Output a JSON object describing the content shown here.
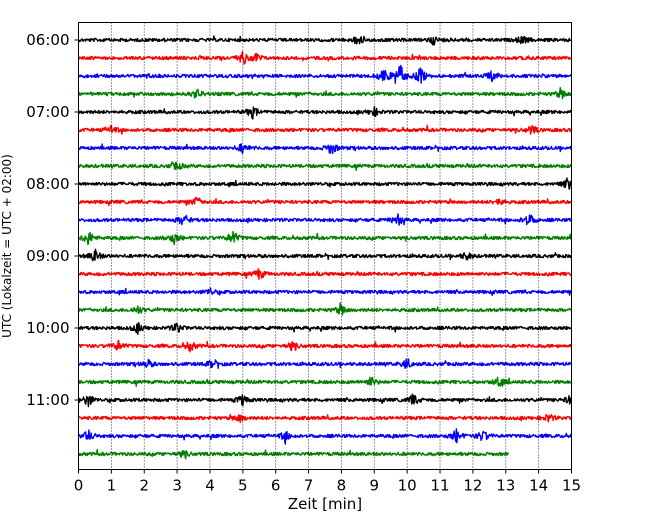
{
  "chart_data": {
    "type": "line",
    "title": "",
    "xlabel": "Zeit  [min]",
    "ylabel": "UTC (Lokalzeit = UTC + 02:00)",
    "xlim": [
      0,
      15
    ],
    "x_ticks": [
      0,
      1,
      2,
      3,
      4,
      5,
      6,
      7,
      8,
      9,
      10,
      11,
      12,
      13,
      14,
      15
    ],
    "x_tick_labels": [
      "0",
      "1",
      "2",
      "3",
      "4",
      "5",
      "6",
      "7",
      "8",
      "9",
      "10",
      "11",
      "12",
      "13",
      "14",
      "15"
    ],
    "y_tick_labels": [
      "06:00",
      "07:00",
      "08:00",
      "09:00",
      "10:00",
      "11:00"
    ],
    "grid": {
      "x": true,
      "style": "dotted"
    },
    "color_cycle": [
      "#000000",
      "#ff0000",
      "#0000ff",
      "#008000"
    ],
    "line_start_utc": "06:00",
    "line_interval_min": 15,
    "traces": [
      {
        "start": "06:00",
        "color": "#000000",
        "end_min": 15,
        "events": [
          [
            8.5,
            0.7
          ],
          [
            10.8,
            0.5
          ],
          [
            13.5,
            0.5
          ]
        ]
      },
      {
        "start": "06:15",
        "color": "#ff0000",
        "end_min": 15,
        "events": [
          [
            5.0,
            0.8
          ],
          [
            5.4,
            0.6
          ]
        ]
      },
      {
        "start": "06:30",
        "color": "#0000ff",
        "end_min": 15,
        "events": [
          [
            9.3,
            0.9
          ],
          [
            9.8,
            1.6
          ],
          [
            10.4,
            1.0
          ],
          [
            12.6,
            0.7
          ]
        ]
      },
      {
        "start": "06:45",
        "color": "#008000",
        "end_min": 15,
        "events": [
          [
            3.6,
            0.6
          ],
          [
            14.7,
            0.6
          ]
        ]
      },
      {
        "start": "07:00",
        "color": "#000000",
        "end_min": 15,
        "events": [
          [
            5.3,
            0.7
          ],
          [
            9.0,
            0.5
          ]
        ]
      },
      {
        "start": "07:15",
        "color": "#ff0000",
        "end_min": 15,
        "events": [
          [
            1.0,
            0.5
          ],
          [
            13.8,
            0.5
          ]
        ]
      },
      {
        "start": "07:30",
        "color": "#0000ff",
        "end_min": 15,
        "events": [
          [
            5.0,
            0.6
          ],
          [
            7.7,
            0.8
          ]
        ]
      },
      {
        "start": "07:45",
        "color": "#008000",
        "end_min": 15,
        "events": [
          [
            3.0,
            0.5
          ]
        ]
      },
      {
        "start": "08:00",
        "color": "#000000",
        "end_min": 15,
        "events": [
          [
            14.9,
            0.7
          ]
        ]
      },
      {
        "start": "08:15",
        "color": "#ff0000",
        "end_min": 15,
        "events": [
          [
            3.6,
            0.6
          ],
          [
            12.8,
            0.5
          ]
        ]
      },
      {
        "start": "08:30",
        "color": "#0000ff",
        "end_min": 15,
        "events": [
          [
            3.2,
            0.8
          ],
          [
            9.7,
            0.8
          ],
          [
            13.7,
            0.8
          ]
        ]
      },
      {
        "start": "08:45",
        "color": "#008000",
        "end_min": 15,
        "events": [
          [
            0.3,
            0.9
          ],
          [
            2.9,
            0.7
          ],
          [
            4.7,
            0.8
          ]
        ]
      },
      {
        "start": "09:00",
        "color": "#000000",
        "end_min": 15,
        "events": [
          [
            0.5,
            0.8
          ],
          [
            11.8,
            0.5
          ]
        ]
      },
      {
        "start": "09:15",
        "color": "#ff0000",
        "end_min": 15,
        "events": [
          [
            5.5,
            0.7
          ]
        ]
      },
      {
        "start": "09:30",
        "color": "#0000ff",
        "end_min": 15,
        "events": [
          [
            4.0,
            0.4
          ]
        ]
      },
      {
        "start": "09:45",
        "color": "#008000",
        "end_min": 15,
        "events": [
          [
            1.8,
            0.5
          ],
          [
            8.0,
            0.7
          ]
        ]
      },
      {
        "start": "10:00",
        "color": "#000000",
        "end_min": 15,
        "events": [
          [
            1.8,
            0.6
          ],
          [
            3.0,
            0.6
          ]
        ]
      },
      {
        "start": "10:15",
        "color": "#ff0000",
        "end_min": 15,
        "events": [
          [
            1.2,
            0.6
          ],
          [
            3.4,
            0.6
          ],
          [
            6.5,
            0.5
          ]
        ]
      },
      {
        "start": "10:30",
        "color": "#0000ff",
        "end_min": 15,
        "events": [
          [
            2.1,
            0.5
          ],
          [
            4.1,
            0.6
          ],
          [
            10.0,
            0.6
          ]
        ]
      },
      {
        "start": "10:45",
        "color": "#008000",
        "end_min": 15,
        "events": [
          [
            8.9,
            0.6
          ],
          [
            12.8,
            0.6
          ]
        ]
      },
      {
        "start": "11:00",
        "color": "#000000",
        "end_min": 15,
        "events": [
          [
            0.3,
            0.8
          ],
          [
            5.0,
            0.7
          ],
          [
            10.2,
            0.8
          ],
          [
            15.0,
            0.7
          ]
        ]
      },
      {
        "start": "11:15",
        "color": "#ff0000",
        "end_min": 15,
        "events": [
          [
            4.9,
            0.6
          ],
          [
            14.3,
            0.5
          ]
        ]
      },
      {
        "start": "11:30",
        "color": "#0000ff",
        "end_min": 15,
        "events": [
          [
            0.3,
            0.7
          ],
          [
            6.3,
            0.6
          ],
          [
            11.5,
            0.8
          ],
          [
            12.3,
            0.7
          ]
        ]
      },
      {
        "start": "11:45",
        "color": "#008000",
        "end_min": 13.1,
        "events": [
          [
            3.2,
            0.4
          ]
        ]
      }
    ]
  }
}
